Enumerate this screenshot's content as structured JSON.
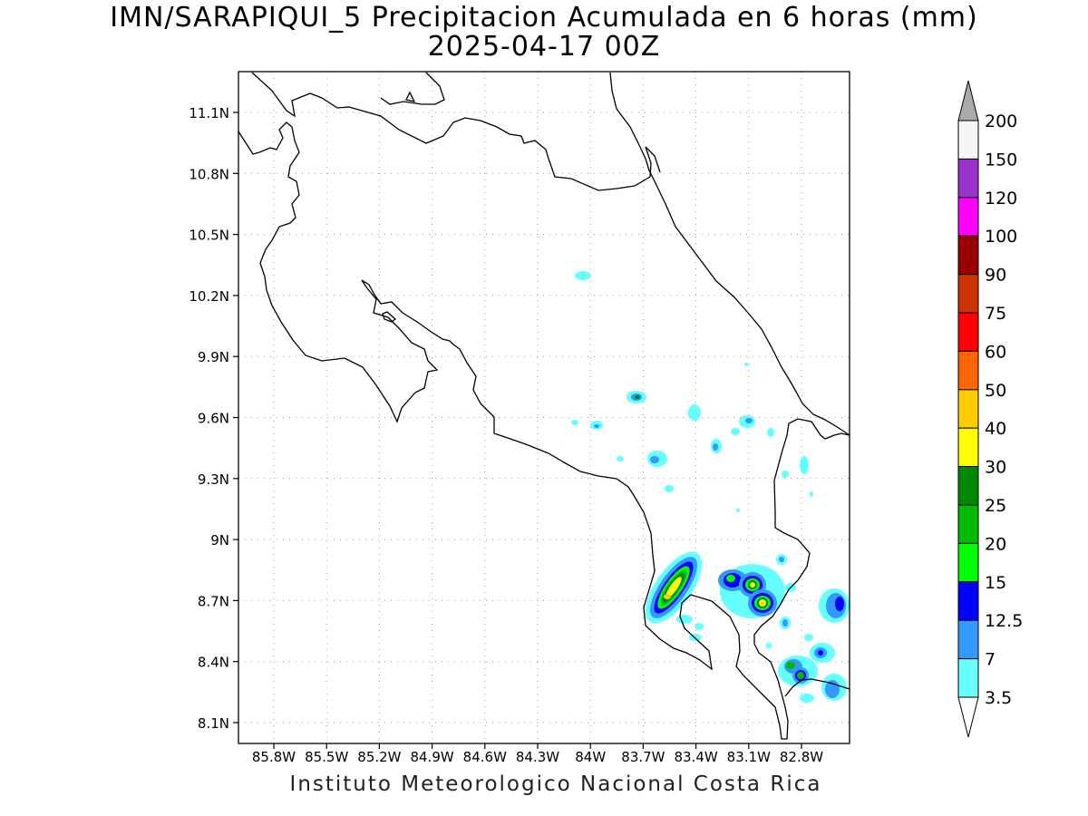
{
  "title": {
    "line1": "IMN/SARAPIQUI_5 Precipitacion Acumulada en 6 horas (mm)",
    "line2": "2025-04-17 00Z"
  },
  "credit": "Instituto Meteorologico Nacional Costa Rica",
  "axes": {
    "lat_labels": [
      "11.1N",
      "10.8N",
      "10.5N",
      "10.2N",
      "9.9N",
      "9.6N",
      "9.3N",
      "9N",
      "8.7N",
      "8.4N",
      "8.1N"
    ],
    "lon_labels": [
      "85.8W",
      "85.5W",
      "85.2W",
      "84.9W",
      "84.6W",
      "84.3W",
      "84W",
      "83.7W",
      "83.4W",
      "83.1W",
      "82.8W"
    ]
  },
  "legend": {
    "levels": [
      "200",
      "150",
      "120",
      "100",
      "90",
      "75",
      "60",
      "50",
      "40",
      "30",
      "25",
      "20",
      "15",
      "12.5",
      "7",
      "3.5"
    ],
    "colors": [
      "#aaaaaa",
      "#f5f5f5",
      "#9933cc",
      "#ff00ff",
      "#990000",
      "#cc3300",
      "#ff0000",
      "#ff6600",
      "#ffcc00",
      "#ffff00",
      "#008800",
      "#00bb00",
      "#00ff00",
      "#0000ff",
      "#3399ff",
      "#66ffff",
      "#ffffff"
    ]
  },
  "colors": {
    "coast": "#000000",
    "grid": "#999999"
  }
}
